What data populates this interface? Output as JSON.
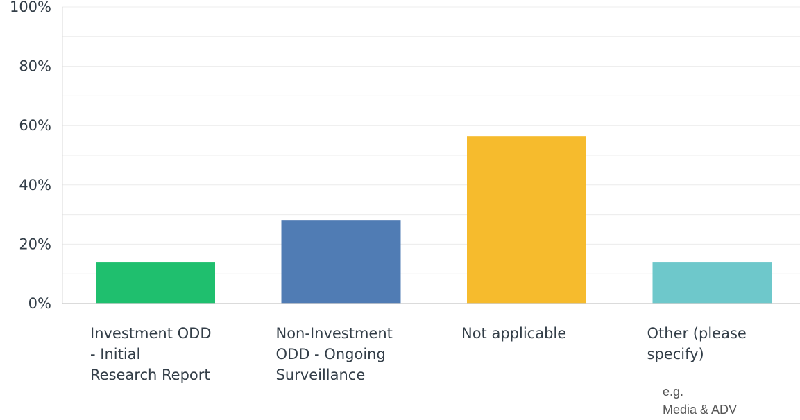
{
  "chart_data": {
    "type": "bar",
    "categories": [
      "Investment ODD\n- Initial\nResearch Report",
      "Non-Investment\nODD - Ongoing\nSurveillance",
      "Not applicable",
      "Other (please\nspecify)"
    ],
    "values": [
      14,
      28,
      56.5,
      14
    ],
    "colors": [
      "#1fbf6e",
      "#507cb4",
      "#f6bb2d",
      "#6ec8cb"
    ],
    "ylim": [
      0,
      100
    ],
    "yticks": [
      "0%",
      "20%",
      "40%",
      "60%",
      "80%",
      "100%"
    ],
    "title": "",
    "xlabel": "",
    "ylabel": "",
    "grid": true,
    "annotation": "e.g.\nMedia & ADV"
  }
}
